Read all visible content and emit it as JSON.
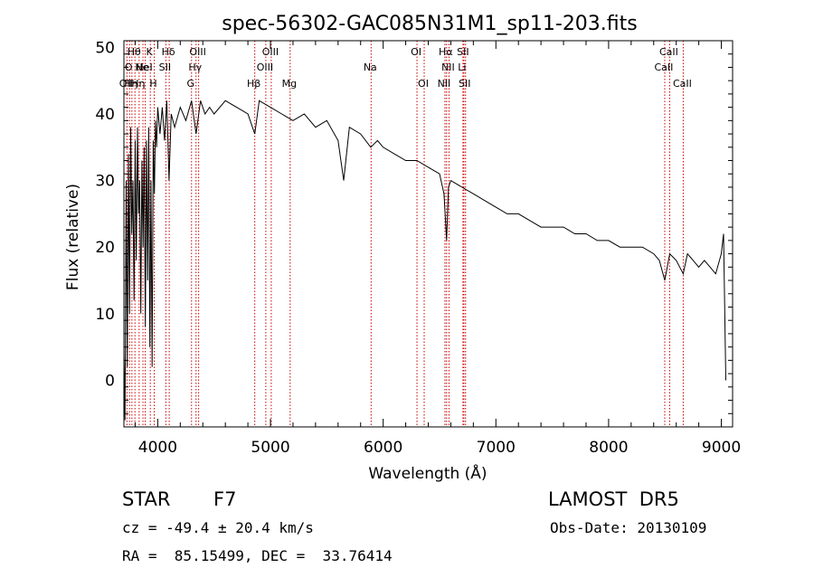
{
  "chart_data": {
    "type": "line",
    "title": "spec-56302-GAC085N31M1_sp11-203.fits",
    "xlabel": "Wavelength (Å)",
    "ylabel": "Flux (relative)",
    "xlim": [
      3700,
      9100
    ],
    "ylim": [
      -7,
      51
    ],
    "x_ticks": [
      4000,
      5000,
      6000,
      7000,
      8000,
      9000
    ],
    "y_ticks": [
      0,
      10,
      20,
      30,
      40,
      50
    ],
    "grid": false,
    "line_color": "#000000",
    "marker_color": "#cc0000",
    "series": [
      {
        "x": [
          3700,
          3710,
          3720,
          3730,
          3740,
          3750,
          3760,
          3770,
          3780,
          3790,
          3800,
          3810,
          3820,
          3830,
          3840,
          3850,
          3860,
          3870,
          3880,
          3890,
          3900,
          3910,
          3920,
          3930,
          3940,
          3950,
          3960,
          3970,
          3980,
          3990,
          4000,
          4020,
          4040,
          4060,
          4080,
          4100,
          4120,
          4150,
          4200,
          4250,
          4300,
          4340,
          4380,
          4420,
          4460,
          4500,
          4600,
          4700,
          4800,
          4861,
          4900,
          5000,
          5100,
          5200,
          5300,
          5400,
          5500,
          5600,
          5650,
          5700,
          5800,
          5890,
          5950,
          6000,
          6100,
          6200,
          6300,
          6400,
          6500,
          6540,
          6563,
          6580,
          6600,
          6700,
          6800,
          6900,
          7000,
          7100,
          7200,
          7300,
          7400,
          7500,
          7600,
          7700,
          7800,
          7900,
          8000,
          8100,
          8200,
          8300,
          8400,
          8450,
          8498,
          8542,
          8600,
          8662,
          8700,
          8750,
          8800,
          8850,
          8900,
          8950,
          9000,
          9020,
          9040
        ],
        "y": [
          4,
          -6,
          30,
          2,
          34,
          10,
          38,
          22,
          30,
          12,
          36,
          18,
          38,
          25,
          30,
          10,
          33,
          20,
          35,
          8,
          36,
          15,
          38,
          5,
          30,
          2,
          36,
          28,
          39,
          35,
          41,
          37,
          41,
          36,
          42,
          30,
          40,
          38,
          41,
          39,
          42,
          37,
          42,
          40,
          41,
          40,
          42,
          41,
          40,
          37,
          42,
          41,
          40,
          39,
          40,
          38,
          39,
          36,
          30,
          38,
          37,
          35,
          36,
          35,
          34,
          33,
          33,
          32,
          31,
          28,
          21,
          29,
          30,
          29,
          28,
          27,
          26,
          25,
          25,
          24,
          23,
          23,
          23,
          22,
          22,
          21,
          21,
          20,
          20,
          20,
          19,
          18,
          15,
          19,
          18,
          16,
          19,
          18,
          17,
          18,
          17,
          16,
          19,
          22,
          0
        ]
      }
    ],
    "lines": [
      {
        "x": 3727,
        "label": "OII",
        "row": 3
      },
      {
        "x": 3750,
        "label": "O",
        "row": 2
      },
      {
        "x": 3771,
        "label": "Hη",
        "row": 3
      },
      {
        "x": 3798,
        "label": "Hθ",
        "row": 1
      },
      {
        "x": 3835,
        "label": "Hη",
        "row": 3
      },
      {
        "x": 3869,
        "label": "Ne",
        "row": 2
      },
      {
        "x": 3889,
        "label": "HeI",
        "row": 2
      },
      {
        "x": 3934,
        "label": "K",
        "row": 1
      },
      {
        "x": 3969,
        "label": "H",
        "row": 3
      },
      {
        "x": 4072,
        "label": "SII",
        "row": 2
      },
      {
        "x": 4102,
        "label": "Hδ",
        "row": 1
      },
      {
        "x": 4300,
        "label": "G",
        "row": 3
      },
      {
        "x": 4340,
        "label": "Hγ",
        "row": 2
      },
      {
        "x": 4363,
        "label": "OIII",
        "row": 1
      },
      {
        "x": 4861,
        "label": "Hβ",
        "row": 3
      },
      {
        "x": 4959,
        "label": "OIII",
        "row": 2
      },
      {
        "x": 5007,
        "label": "OIII",
        "row": 1
      },
      {
        "x": 5175,
        "label": "Mg",
        "row": 3
      },
      {
        "x": 5893,
        "label": "Na",
        "row": 2
      },
      {
        "x": 6300,
        "label": "OI",
        "row": 1
      },
      {
        "x": 6364,
        "label": "OI",
        "row": 3
      },
      {
        "x": 6548,
        "label": "NII",
        "row": 3
      },
      {
        "x": 6563,
        "label": "Hα",
        "row": 1
      },
      {
        "x": 6584,
        "label": "NII",
        "row": 2
      },
      {
        "x": 6708,
        "label": "Li",
        "row": 2
      },
      {
        "x": 6716,
        "label": "SII",
        "row": 1
      },
      {
        "x": 6731,
        "label": "SII",
        "row": 3
      },
      {
        "x": 8498,
        "label": "CaII",
        "row": 2
      },
      {
        "x": 8542,
        "label": "CaII",
        "row": 1
      },
      {
        "x": 8662,
        "label": "CaII",
        "row": 3
      }
    ]
  },
  "info": {
    "object_class": "STAR",
    "subclass": "F7",
    "survey": "LAMOST  DR5",
    "redshift": "cz = -49.4 ± 20.4 km/s",
    "obs_date": "Obs-Date: 20130109",
    "coords": "RA =  85.15499, DEC =  33.76414"
  }
}
